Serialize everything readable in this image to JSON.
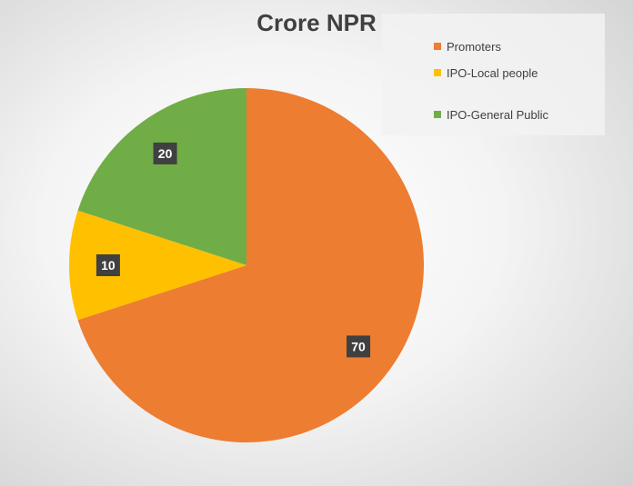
{
  "chart_data": {
    "type": "pie",
    "title": "Crore NPR",
    "categories": [
      "Promoters",
      "IPO-Local people",
      "IPO-General Public"
    ],
    "values": [
      70,
      10,
      20
    ],
    "data_labels": [
      "70",
      "10",
      "20"
    ],
    "colors": [
      "#ED7D31",
      "#FFC000",
      "#70AD47"
    ],
    "legend_position": "top-right",
    "start_angle_deg": 0,
    "direction": "clockwise"
  }
}
